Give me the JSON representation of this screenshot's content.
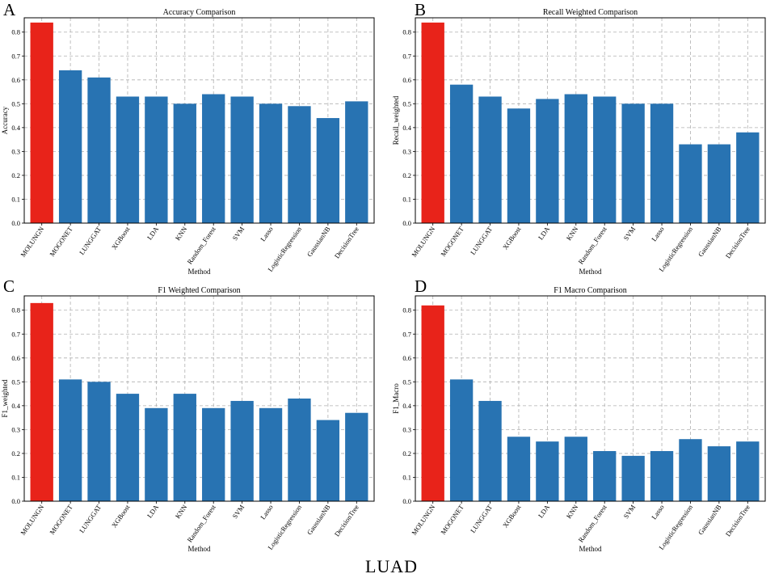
{
  "figure": {
    "caption": "LUAD"
  },
  "chart_data": [
    {
      "letter": "A",
      "type": "bar",
      "title": "Accuracy Comparison",
      "xlabel": "Method",
      "ylabel": "Accuracy",
      "ylim": [
        0,
        0.86
      ],
      "yticks": [
        "0.0",
        "0.1",
        "0.2",
        "0.3",
        "0.4",
        "0.5",
        "0.6",
        "0.7",
        "0.8"
      ],
      "categories": [
        "MOLUNGN",
        "MOGONET",
        "LUNGGAT",
        "XGBoost",
        "LDA",
        "KNN",
        "Random_Forest",
        "SVM",
        "Lasso",
        "LogisticRegression",
        "GaussianNB",
        "DecisionTree"
      ],
      "values": [
        0.84,
        0.64,
        0.61,
        0.53,
        0.53,
        0.5,
        0.54,
        0.53,
        0.5,
        0.49,
        0.44,
        0.51
      ],
      "colors": [
        "#e8231a",
        "#2873b2",
        "#2873b2",
        "#2873b2",
        "#2873b2",
        "#2873b2",
        "#2873b2",
        "#2873b2",
        "#2873b2",
        "#2873b2",
        "#2873b2",
        "#2873b2"
      ],
      "grid": true
    },
    {
      "letter": "B",
      "type": "bar",
      "title": "Recall Weighted Comparison",
      "xlabel": "Method",
      "ylabel": "Recall_weighted",
      "ylim": [
        0,
        0.86
      ],
      "yticks": [
        "0.0",
        "0.1",
        "0.2",
        "0.3",
        "0.4",
        "0.5",
        "0.6",
        "0.7",
        "0.8"
      ],
      "categories": [
        "MOLUNGN",
        "MOGONET",
        "LUNGGAT",
        "XGBoost",
        "LDA",
        "KNN",
        "Random_Forest",
        "SVM",
        "Lasso",
        "LogisticRegression",
        "GaussianNB",
        "DecisionTree"
      ],
      "values": [
        0.84,
        0.58,
        0.53,
        0.48,
        0.52,
        0.54,
        0.53,
        0.5,
        0.5,
        0.33,
        0.33,
        0.38
      ],
      "colors": [
        "#e8231a",
        "#2873b2",
        "#2873b2",
        "#2873b2",
        "#2873b2",
        "#2873b2",
        "#2873b2",
        "#2873b2",
        "#2873b2",
        "#2873b2",
        "#2873b2",
        "#2873b2"
      ],
      "grid": true
    },
    {
      "letter": "C",
      "type": "bar",
      "title": "F1 Weighted Comparison",
      "xlabel": "Method",
      "ylabel": "F1_weighted",
      "ylim": [
        0,
        0.86
      ],
      "yticks": [
        "0.0",
        "0.1",
        "0.2",
        "0.3",
        "0.4",
        "0.5",
        "0.6",
        "0.7",
        "0.8"
      ],
      "categories": [
        "MOLUNGN",
        "MOGONET",
        "LUNGGAT",
        "XGBoost",
        "LDA",
        "KNN",
        "Random_Forest",
        "SVM",
        "Lasso",
        "LogisticRegression",
        "GaussianNB",
        "DecisionTree"
      ],
      "values": [
        0.83,
        0.51,
        0.5,
        0.45,
        0.39,
        0.45,
        0.39,
        0.42,
        0.39,
        0.43,
        0.34,
        0.37
      ],
      "colors": [
        "#e8231a",
        "#2873b2",
        "#2873b2",
        "#2873b2",
        "#2873b2",
        "#2873b2",
        "#2873b2",
        "#2873b2",
        "#2873b2",
        "#2873b2",
        "#2873b2",
        "#2873b2"
      ],
      "grid": true
    },
    {
      "letter": "D",
      "type": "bar",
      "title": "F1 Macro Comparison",
      "xlabel": "Method",
      "ylabel": "F1_Macro",
      "ylim": [
        0,
        0.86
      ],
      "yticks": [
        "0.0",
        "0.1",
        "0.2",
        "0.3",
        "0.4",
        "0.5",
        "0.6",
        "0.7",
        "0.8"
      ],
      "categories": [
        "MOLUNGN",
        "MOGONET",
        "LUNGGAT",
        "XGBoost",
        "LDA",
        "KNN",
        "Random_Forest",
        "SVM",
        "Lasso",
        "LogisticRegression",
        "GaussianNB",
        "DecisionTree"
      ],
      "values": [
        0.82,
        0.51,
        0.42,
        0.27,
        0.25,
        0.27,
        0.21,
        0.19,
        0.21,
        0.26,
        0.23,
        0.25
      ],
      "colors": [
        "#e8231a",
        "#2873b2",
        "#2873b2",
        "#2873b2",
        "#2873b2",
        "#2873b2",
        "#2873b2",
        "#2873b2",
        "#2873b2",
        "#2873b2",
        "#2873b2",
        "#2873b2"
      ],
      "grid": true
    }
  ]
}
